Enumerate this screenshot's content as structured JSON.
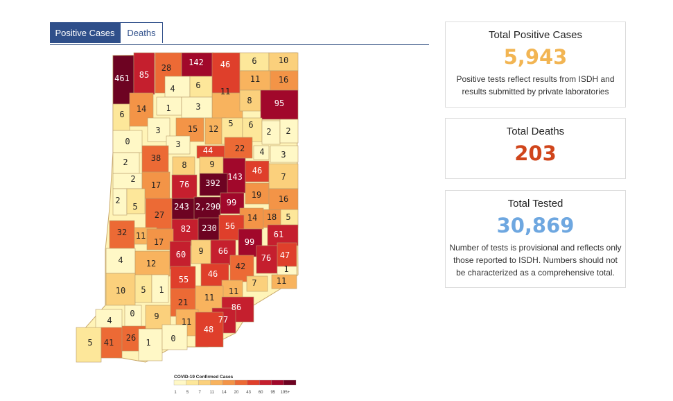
{
  "tabs": {
    "positive": "Positive Cases",
    "deaths": "Deaths"
  },
  "cards": {
    "positive": {
      "title": "Total Positive Cases",
      "value": "5,943",
      "note": "Positive tests reflect results from ISDH and results submitted by private laboratories"
    },
    "deaths": {
      "title": "Total Deaths",
      "value": "203"
    },
    "tested": {
      "title": "Total Tested",
      "value": "30,869",
      "note": "Number of tests is provisional and reflects only those reported to ISDH. Numbers should not be characterized as a comprehensive total."
    }
  },
  "colors": {
    "positive": "#f2b553",
    "deaths": "#d0451b",
    "tested": "#6ea7e0"
  },
  "legend": {
    "title": "COVID-19 Confirmed Cases",
    "ticks": [
      "1",
      "5",
      "7",
      "11",
      "14",
      "20",
      "43",
      "60",
      "95",
      "195+"
    ],
    "colors": [
      "#fff8c6",
      "#fde79a",
      "#fbd07c",
      "#f8b35e",
      "#f39447",
      "#ec6a35",
      "#df3f2b",
      "#c51f2e",
      "#a1082b",
      "#6d0322"
    ]
  },
  "counties": [
    "461",
    "85",
    "28",
    "142",
    "46",
    "6",
    "10",
    "6",
    "11",
    "16",
    "11",
    "4",
    "6",
    "14",
    "1",
    "3",
    "8",
    "95",
    "3",
    "15",
    "12",
    "5",
    "6",
    "2",
    "2",
    "0",
    "3",
    "44",
    "22",
    "4",
    "3",
    "2",
    "38",
    "8",
    "9",
    "143",
    "46",
    "7",
    "2",
    "17",
    "76",
    "392",
    "19",
    "2",
    "5",
    "243",
    "2,290",
    "99",
    "16",
    "27",
    "14",
    "18",
    "5",
    "32",
    "11",
    "82",
    "230",
    "56",
    "61",
    "17",
    "99",
    "4",
    "12",
    "60",
    "9",
    "66",
    "76",
    "47",
    "42",
    "1",
    "10",
    "5",
    "1",
    "55",
    "46",
    "7",
    "11",
    "11",
    "21",
    "11",
    "0",
    "86",
    "9",
    "4",
    "77",
    "11",
    "48",
    "5",
    "41",
    "26",
    "1",
    "0"
  ]
}
